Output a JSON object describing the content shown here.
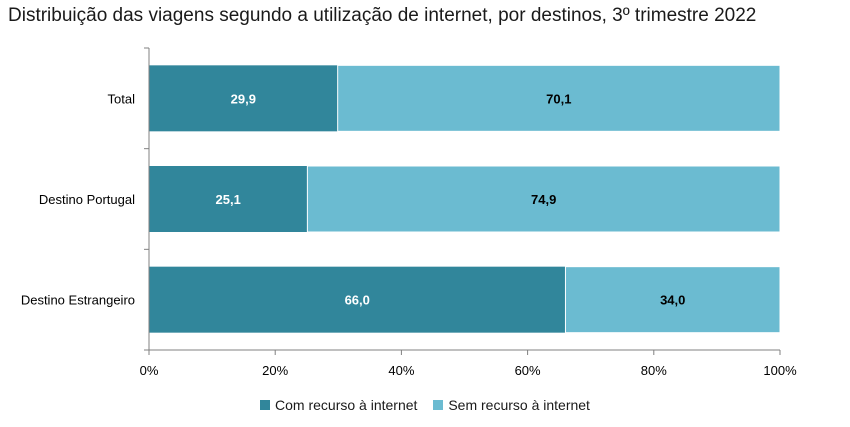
{
  "chart_data": {
    "type": "bar",
    "orientation": "horizontal",
    "stacked": true,
    "title": "Distribuição das viagens segundo a utilização de internet, por destinos, 3º trimestre 2022",
    "categories": [
      "Total",
      "Destino Portugal",
      "Destino Estrangeiro"
    ],
    "series": [
      {
        "name": "Com recurso à internet",
        "values": [
          29.9,
          25.1,
          66.0
        ],
        "labels": [
          "29,9",
          "25,1",
          "66,0"
        ],
        "color": "#31869b",
        "label_color": "#ffffff"
      },
      {
        "name": "Sem recurso à internet",
        "values": [
          70.1,
          74.9,
          34.0
        ],
        "labels": [
          "70,1",
          "74,9",
          "34,0"
        ],
        "color": "#6bbbd1",
        "label_color": "#000000"
      }
    ],
    "xlim": [
      0,
      100
    ],
    "xticks": [
      "0%",
      "20%",
      "40%",
      "60%",
      "80%",
      "100%"
    ],
    "grid": false,
    "legend_position": "bottom"
  }
}
